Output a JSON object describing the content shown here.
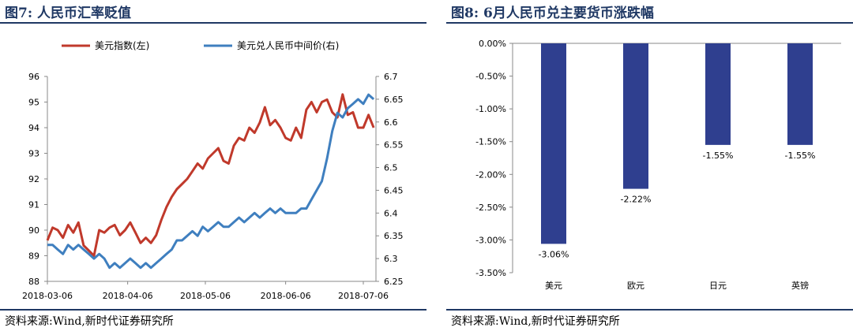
{
  "left": {
    "title": "图7:  人民币汇率贬值",
    "source": "资料来源:Wind,新时代证券研究所",
    "chart_data": {
      "type": "line",
      "title": "图7:  人民币汇率贬值",
      "x_ticks": [
        "2018-03-06",
        "2018-04-06",
        "2018-05-06",
        "2018-06-06",
        "2018-07-06"
      ],
      "ylim_left": [
        88,
        96
      ],
      "yticks_left": [
        "88",
        "89",
        "90",
        "91",
        "92",
        "93",
        "94",
        "95",
        "96"
      ],
      "ylim_right": [
        6.25,
        6.7
      ],
      "yticks_right": [
        "6.25",
        "6.3",
        "6.35",
        "6.4",
        "6.45",
        "6.5",
        "6.55",
        "6.6",
        "6.65",
        "6.7"
      ],
      "legend_position": "top",
      "series": [
        {
          "name": "美元指数(左)",
          "axis": "left",
          "color": "#c0392b",
          "x": [
            "2018-03-06",
            "2018-03-08",
            "2018-03-10",
            "2018-03-12",
            "2018-03-14",
            "2018-03-16",
            "2018-03-18",
            "2018-03-20",
            "2018-03-22",
            "2018-03-24",
            "2018-03-26",
            "2018-03-28",
            "2018-03-30",
            "2018-04-01",
            "2018-04-03",
            "2018-04-05",
            "2018-04-07",
            "2018-04-09",
            "2018-04-11",
            "2018-04-13",
            "2018-04-15",
            "2018-04-17",
            "2018-04-19",
            "2018-04-21",
            "2018-04-23",
            "2018-04-25",
            "2018-04-27",
            "2018-04-29",
            "2018-05-01",
            "2018-05-03",
            "2018-05-05",
            "2018-05-07",
            "2018-05-09",
            "2018-05-11",
            "2018-05-13",
            "2018-05-15",
            "2018-05-17",
            "2018-05-19",
            "2018-05-21",
            "2018-05-23",
            "2018-05-25",
            "2018-05-27",
            "2018-05-29",
            "2018-05-31",
            "2018-06-02",
            "2018-06-04",
            "2018-06-06",
            "2018-06-08",
            "2018-06-10",
            "2018-06-12",
            "2018-06-14",
            "2018-06-16",
            "2018-06-18",
            "2018-06-20",
            "2018-06-22",
            "2018-06-24",
            "2018-06-26",
            "2018-06-28",
            "2018-06-30",
            "2018-07-02",
            "2018-07-04",
            "2018-07-06",
            "2018-07-08",
            "2018-07-10"
          ],
          "values": [
            89.6,
            90.1,
            90.0,
            89.7,
            90.2,
            89.9,
            90.3,
            89.4,
            89.2,
            89.0,
            90.0,
            89.9,
            90.1,
            90.2,
            89.8,
            90.0,
            90.3,
            89.9,
            89.5,
            89.7,
            89.5,
            89.8,
            90.4,
            90.9,
            91.3,
            91.6,
            91.8,
            92.0,
            92.3,
            92.6,
            92.4,
            92.8,
            93.0,
            93.2,
            92.7,
            92.6,
            93.3,
            93.6,
            93.5,
            94.0,
            93.8,
            94.2,
            94.8,
            94.1,
            94.3,
            94.0,
            93.6,
            93.5,
            94.0,
            93.6,
            94.7,
            95.0,
            94.6,
            95.0,
            95.1,
            94.6,
            94.4,
            95.3,
            94.5,
            94.6,
            94.0,
            94.0,
            94.5,
            94.0
          ]
        },
        {
          "name": "美元兑人民币中间价(右)",
          "axis": "right",
          "color": "#3f7fbf",
          "x": [
            "2018-03-06",
            "2018-03-08",
            "2018-03-10",
            "2018-03-12",
            "2018-03-14",
            "2018-03-16",
            "2018-03-18",
            "2018-03-20",
            "2018-03-22",
            "2018-03-24",
            "2018-03-26",
            "2018-03-28",
            "2018-03-30",
            "2018-04-01",
            "2018-04-03",
            "2018-04-05",
            "2018-04-07",
            "2018-04-09",
            "2018-04-11",
            "2018-04-13",
            "2018-04-15",
            "2018-04-17",
            "2018-04-19",
            "2018-04-21",
            "2018-04-23",
            "2018-04-25",
            "2018-04-27",
            "2018-04-29",
            "2018-05-01",
            "2018-05-03",
            "2018-05-05",
            "2018-05-07",
            "2018-05-09",
            "2018-05-11",
            "2018-05-13",
            "2018-05-15",
            "2018-05-17",
            "2018-05-19",
            "2018-05-21",
            "2018-05-23",
            "2018-05-25",
            "2018-05-27",
            "2018-05-29",
            "2018-05-31",
            "2018-06-02",
            "2018-06-04",
            "2018-06-06",
            "2018-06-08",
            "2018-06-10",
            "2018-06-12",
            "2018-06-14",
            "2018-06-16",
            "2018-06-18",
            "2018-06-20",
            "2018-06-22",
            "2018-06-24",
            "2018-06-26",
            "2018-06-28",
            "2018-06-30",
            "2018-07-02",
            "2018-07-04",
            "2018-07-06",
            "2018-07-08",
            "2018-07-10"
          ],
          "values": [
            6.33,
            6.33,
            6.32,
            6.31,
            6.33,
            6.32,
            6.33,
            6.32,
            6.31,
            6.3,
            6.31,
            6.3,
            6.28,
            6.29,
            6.28,
            6.29,
            6.3,
            6.29,
            6.28,
            6.29,
            6.28,
            6.29,
            6.3,
            6.31,
            6.32,
            6.34,
            6.34,
            6.35,
            6.36,
            6.35,
            6.37,
            6.36,
            6.37,
            6.38,
            6.37,
            6.37,
            6.38,
            6.39,
            6.38,
            6.39,
            6.4,
            6.39,
            6.4,
            6.41,
            6.4,
            6.41,
            6.4,
            6.4,
            6.4,
            6.41,
            6.41,
            6.43,
            6.45,
            6.47,
            6.52,
            6.58,
            6.62,
            6.61,
            6.63,
            6.64,
            6.65,
            6.64,
            6.66,
            6.65
          ]
        }
      ]
    }
  },
  "right": {
    "title": "图8:  6月人民币兑主要货币涨跌幅",
    "source": "资料来源:Wind,新时代证券研究所",
    "chart_data": {
      "type": "bar",
      "title": "图8:  6月人民币兑主要货币涨跌幅",
      "categories": [
        "美元",
        "欧元",
        "日元",
        "英镑"
      ],
      "values": [
        -3.06,
        -2.22,
        -1.55,
        -1.55
      ],
      "value_labels": [
        "-3.06%",
        "-2.22%",
        "-1.55%",
        "-1.55%"
      ],
      "ylim": [
        -3.5,
        0
      ],
      "yticks": [
        "0.00%",
        "-0.50%",
        "-1.00%",
        "-1.50%",
        "-2.00%",
        "-2.50%",
        "-3.00%",
        "-3.50%"
      ],
      "color": "#2f3f8f"
    }
  }
}
